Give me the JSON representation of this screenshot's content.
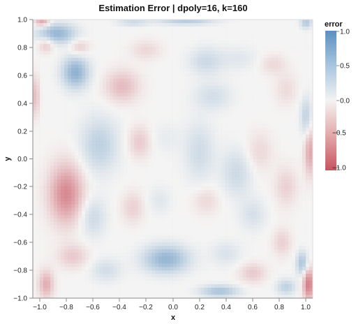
{
  "chart_data": {
    "type": "heatmap",
    "title": "Estimation Error | dpoly=16, k=160",
    "xlabel": "x",
    "ylabel": "y",
    "xlim": [
      -1.05,
      1.05
    ],
    "ylim": [
      -1.0,
      1.0
    ],
    "x_ticks": [
      "−1.0",
      "−0.8",
      "−0.6",
      "−0.4",
      "−0.2",
      "0.0",
      "0.2",
      "0.4",
      "0.6",
      "0.8",
      "1.0"
    ],
    "y_ticks": [
      "1.0",
      "0.8",
      "0.6",
      "0.4",
      "0.2",
      "0.0",
      "−0.2",
      "−0.4",
      "−0.6",
      "−0.8",
      "−1.0"
    ],
    "grid": true,
    "grid_resolution": 80,
    "color_scale": {
      "title": "error",
      "domain": [
        -1.0,
        1.0
      ],
      "colors": {
        "negative": "#c7535f",
        "zero": "#f4f3f2",
        "positive": "#5b8fbf"
      },
      "ticks": [
        "1.0",
        "0.5",
        "0.0",
        "−0.5",
        "−1.0"
      ]
    },
    "error_features": [
      {
        "x": -0.87,
        "y": 0.9,
        "value": 0.7,
        "sx": 0.1,
        "sy": 0.05
      },
      {
        "x": -0.73,
        "y": 0.62,
        "value": 0.75,
        "sx": 0.07,
        "sy": 0.08
      },
      {
        "x": -0.95,
        "y": 0.82,
        "value": -0.35,
        "sx": 0.04,
        "sy": 0.04
      },
      {
        "x": -0.7,
        "y": 0.8,
        "value": -0.3,
        "sx": 0.05,
        "sy": 0.04
      },
      {
        "x": -0.38,
        "y": 0.52,
        "value": -0.4,
        "sx": 0.09,
        "sy": 0.08
      },
      {
        "x": 0.25,
        "y": 0.7,
        "value": 0.3,
        "sx": 0.09,
        "sy": 0.07
      },
      {
        "x": 0.3,
        "y": 0.45,
        "value": 0.25,
        "sx": 0.1,
        "sy": 0.07
      },
      {
        "x": 0.5,
        "y": 0.72,
        "value": 0.15,
        "sx": 0.1,
        "sy": 0.06
      },
      {
        "x": -0.2,
        "y": 0.78,
        "value": -0.2,
        "sx": 0.08,
        "sy": 0.05
      },
      {
        "x": 0.75,
        "y": 0.68,
        "value": -0.2,
        "sx": 0.07,
        "sy": 0.05
      },
      {
        "x": 0.85,
        "y": 0.5,
        "value": -0.18,
        "sx": 0.06,
        "sy": 0.08
      },
      {
        "x": -0.55,
        "y": 0.1,
        "value": 0.4,
        "sx": 0.1,
        "sy": 0.14
      },
      {
        "x": -0.25,
        "y": 0.12,
        "value": -0.3,
        "sx": 0.06,
        "sy": 0.08
      },
      {
        "x": -0.05,
        "y": 0.15,
        "value": 0.1,
        "sx": 0.08,
        "sy": 0.08
      },
      {
        "x": 0.2,
        "y": 0.05,
        "value": 0.28,
        "sx": 0.08,
        "sy": 0.15
      },
      {
        "x": 0.48,
        "y": -0.1,
        "value": 0.3,
        "sx": 0.08,
        "sy": 0.12
      },
      {
        "x": 0.65,
        "y": 0.05,
        "value": -0.2,
        "sx": 0.07,
        "sy": 0.1
      },
      {
        "x": -0.8,
        "y": -0.25,
        "value": -0.75,
        "sx": 0.09,
        "sy": 0.15
      },
      {
        "x": -0.6,
        "y": -0.42,
        "value": 0.3,
        "sx": 0.07,
        "sy": 0.1
      },
      {
        "x": -0.3,
        "y": -0.35,
        "value": -0.25,
        "sx": 0.06,
        "sy": 0.08
      },
      {
        "x": -0.1,
        "y": -0.3,
        "value": 0.15,
        "sx": 0.06,
        "sy": 0.07
      },
      {
        "x": 0.25,
        "y": -0.3,
        "value": -0.2,
        "sx": 0.07,
        "sy": 0.07
      },
      {
        "x": 0.6,
        "y": -0.4,
        "value": 0.22,
        "sx": 0.07,
        "sy": 0.08
      },
      {
        "x": 0.85,
        "y": -0.2,
        "value": -0.25,
        "sx": 0.06,
        "sy": 0.1
      },
      {
        "x": -0.75,
        "y": -0.7,
        "value": -0.3,
        "sx": 0.08,
        "sy": 0.06
      },
      {
        "x": -0.5,
        "y": -0.8,
        "value": 0.25,
        "sx": 0.08,
        "sy": 0.06
      },
      {
        "x": -0.05,
        "y": -0.72,
        "value": 0.7,
        "sx": 0.12,
        "sy": 0.07
      },
      {
        "x": 0.4,
        "y": -0.68,
        "value": 0.2,
        "sx": 0.08,
        "sy": 0.06
      },
      {
        "x": 0.6,
        "y": -0.82,
        "value": -0.3,
        "sx": 0.07,
        "sy": 0.05
      },
      {
        "x": 0.82,
        "y": -0.6,
        "value": -0.25,
        "sx": 0.05,
        "sy": 0.07
      },
      {
        "x": -0.95,
        "y": -0.9,
        "value": -0.5,
        "sx": 0.04,
        "sy": 0.07
      },
      {
        "x": 0.35,
        "y": -0.95,
        "value": 0.55,
        "sx": 0.1,
        "sy": 0.03
      },
      {
        "x": 0.85,
        "y": -0.92,
        "value": 0.4,
        "sx": 0.05,
        "sy": 0.04
      },
      {
        "x": 1.02,
        "y": -0.9,
        "value": -0.85,
        "sx": 0.03,
        "sy": 0.08
      },
      {
        "x": 0.97,
        "y": -0.75,
        "value": 0.55,
        "sx": 0.03,
        "sy": 0.06
      },
      {
        "x": 1.03,
        "y": 0.05,
        "value": -0.55,
        "sx": 0.03,
        "sy": 0.12
      },
      {
        "x": 1.0,
        "y": 0.3,
        "value": 0.4,
        "sx": 0.03,
        "sy": 0.1
      },
      {
        "x": -1.03,
        "y": 0.45,
        "value": -0.4,
        "sx": 0.02,
        "sy": 0.1
      },
      {
        "x": 0.1,
        "y": 0.99,
        "value": 0.45,
        "sx": 0.15,
        "sy": 0.02
      },
      {
        "x": -0.3,
        "y": 0.98,
        "value": 0.3,
        "sx": 0.08,
        "sy": 0.02
      },
      {
        "x": -0.98,
        "y": 0.99,
        "value": -0.6,
        "sx": 0.04,
        "sy": 0.03
      },
      {
        "x": 1.0,
        "y": 0.98,
        "value": 0.5,
        "sx": 0.03,
        "sy": 0.03
      }
    ]
  }
}
